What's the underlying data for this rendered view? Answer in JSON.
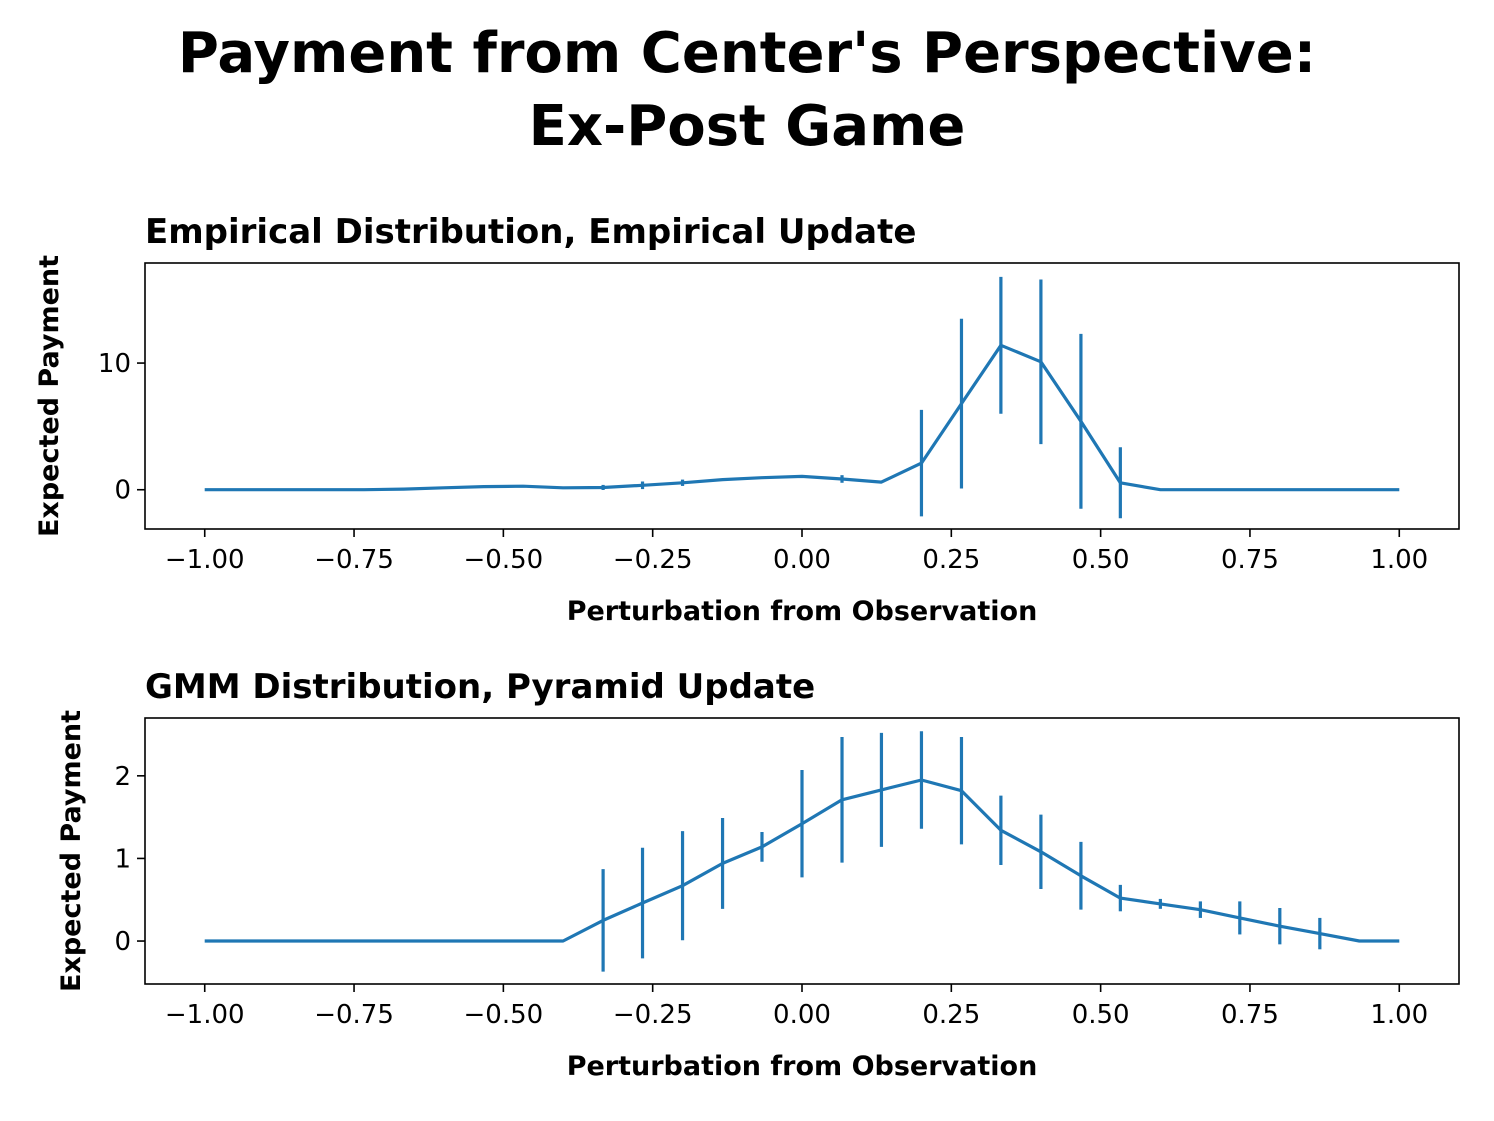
{
  "title_line1": "Payment from Center's Perspective:",
  "title_line2": "Ex-Post Game",
  "chart_data": [
    {
      "type": "line",
      "title": "Empirical Distribution, Empirical Update",
      "xlabel": "Perturbation from Observation",
      "ylabel": "Expected Payment",
      "xlim": [
        -1.1,
        1.1
      ],
      "ylim": [
        -3.1,
        17.9
      ],
      "xticks": [
        -1.0,
        -0.75,
        -0.5,
        -0.25,
        0.0,
        0.25,
        0.5,
        0.75,
        1.0
      ],
      "xtick_labels": [
        "−1.00",
        "−0.75",
        "−0.50",
        "−0.25",
        "0.00",
        "0.25",
        "0.50",
        "0.75",
        "1.00"
      ],
      "yticks": [
        0,
        10
      ],
      "ytick_labels": [
        "0",
        "10"
      ],
      "color": "#1f77b4",
      "x": [
        -1.0,
        -0.933,
        -0.867,
        -0.8,
        -0.733,
        -0.667,
        -0.6,
        -0.533,
        -0.467,
        -0.4,
        -0.333,
        -0.267,
        -0.2,
        -0.133,
        -0.067,
        0.0,
        0.067,
        0.133,
        0.2,
        0.267,
        0.333,
        0.4,
        0.467,
        0.533,
        0.6,
        0.667,
        0.733,
        0.8,
        0.867,
        0.933,
        1.0
      ],
      "y": [
        0,
        0,
        0,
        0,
        0,
        0.05,
        0.15,
        0.25,
        0.28,
        0.15,
        0.18,
        0.35,
        0.55,
        0.8,
        0.95,
        1.05,
        0.85,
        0.6,
        2.1,
        6.8,
        11.4,
        10.1,
        5.4,
        0.55,
        0,
        0,
        0,
        0,
        0,
        0,
        0
      ],
      "yerr": [
        0,
        0,
        0,
        0,
        0,
        0,
        0,
        0,
        0,
        0,
        0.2,
        0.3,
        0.25,
        0,
        0,
        0,
        0.3,
        0,
        4.2,
        6.7,
        5.4,
        6.5,
        6.9,
        2.8,
        0,
        0,
        0,
        0,
        0,
        0,
        0
      ]
    },
    {
      "type": "line",
      "title": "GMM Distribution, Pyramid Update",
      "xlabel": "Perturbation from Observation",
      "ylabel": "Expected Payment",
      "xlim": [
        -1.1,
        1.1
      ],
      "ylim": [
        -0.52,
        2.7
      ],
      "xticks": [
        -1.0,
        -0.75,
        -0.5,
        -0.25,
        0.0,
        0.25,
        0.5,
        0.75,
        1.0
      ],
      "xtick_labels": [
        "−1.00",
        "−0.75",
        "−0.50",
        "−0.25",
        "0.00",
        "0.25",
        "0.50",
        "0.75",
        "1.00"
      ],
      "yticks": [
        0,
        1,
        2
      ],
      "ytick_labels": [
        "0",
        "1",
        "2"
      ],
      "color": "#1f77b4",
      "x": [
        -1.0,
        -0.933,
        -0.867,
        -0.8,
        -0.733,
        -0.667,
        -0.6,
        -0.533,
        -0.467,
        -0.4,
        -0.333,
        -0.267,
        -0.2,
        -0.133,
        -0.067,
        0.0,
        0.067,
        0.133,
        0.2,
        0.267,
        0.333,
        0.4,
        0.467,
        0.533,
        0.6,
        0.667,
        0.733,
        0.8,
        0.867,
        0.933,
        1.0
      ],
      "y": [
        0,
        0,
        0,
        0,
        0,
        0,
        0,
        0,
        0,
        0,
        0.25,
        0.46,
        0.67,
        0.94,
        1.14,
        1.42,
        1.71,
        1.83,
        1.95,
        1.82,
        1.34,
        1.08,
        0.79,
        0.52,
        0.45,
        0.38,
        0.28,
        0.18,
        0.09,
        0,
        0
      ],
      "yerr": [
        0,
        0,
        0,
        0,
        0,
        0,
        0,
        0,
        0,
        0,
        0.62,
        0.67,
        0.66,
        0.55,
        0.18,
        0.65,
        0.76,
        0.69,
        0.59,
        0.65,
        0.42,
        0.45,
        0.41,
        0.16,
        0.06,
        0.1,
        0.2,
        0.22,
        0.19,
        0,
        0
      ]
    }
  ]
}
